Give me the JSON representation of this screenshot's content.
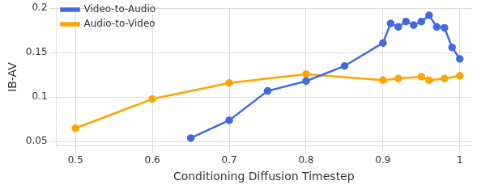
{
  "chart_data": {
    "type": "line",
    "x_label": "Conditioning Diffusion Timestep",
    "y_label": "IB-AV",
    "xlim": [
      0.475,
      1.015
    ],
    "xticks": [
      0.5,
      0.6,
      0.7,
      0.8,
      0.9,
      1
    ],
    "ylim": [
      0.045,
      0.2
    ],
    "yticks": [
      0.05,
      0.1,
      0.15,
      0.2
    ],
    "grid": true,
    "legend": "upper left",
    "series": [
      {
        "name": "Video-to-Audio",
        "color": "#4169e1",
        "marker": "circle",
        "x": [
          0.65,
          0.7,
          0.75,
          0.8,
          0.85,
          0.9,
          0.91,
          0.92,
          0.93,
          0.94,
          0.95,
          0.96,
          0.97,
          0.98,
          0.99,
          1.0
        ],
        "values": [
          0.054,
          0.074,
          0.107,
          0.118,
          0.135,
          0.161,
          0.183,
          0.179,
          0.185,
          0.181,
          0.185,
          0.192,
          0.179,
          0.178,
          0.156,
          0.143
        ]
      },
      {
        "name": "Audio-to-Video",
        "color": "#ffa500",
        "marker": "circle",
        "x": [
          0.5,
          0.6,
          0.7,
          0.8,
          0.9,
          0.92,
          0.95,
          0.96,
          0.98,
          1.0
        ],
        "values": [
          0.065,
          0.098,
          0.116,
          0.126,
          0.119,
          0.121,
          0.123,
          0.119,
          0.121,
          0.124
        ]
      }
    ]
  }
}
